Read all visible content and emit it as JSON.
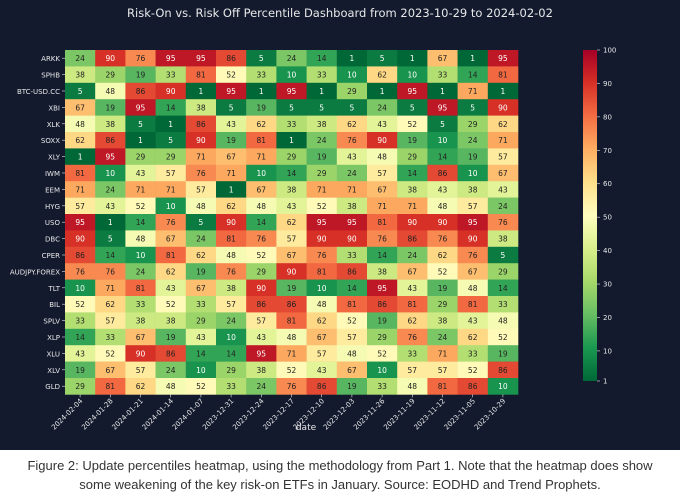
{
  "chart_data": {
    "type": "heatmap",
    "title": "Risk-On vs. Risk Off Percentile Dashboard from 2023-10-29 to 2024-02-02",
    "xlabel": "date",
    "ylabel": "",
    "x": [
      "2024-02-04",
      "2024-01-28",
      "2024-01-21",
      "2024-01-14",
      "2024-01-07",
      "2023-12-31",
      "2023-12-24",
      "2023-12-17",
      "2023-12-10",
      "2023-12-03",
      "2023-11-26",
      "2023-11-19",
      "2023-11-12",
      "2023-11-05",
      "2023-10-29"
    ],
    "y": [
      "ARKK",
      "SPHB",
      "BTC-USD.CC",
      "XBI",
      "XLK",
      "SOXX",
      "XLY",
      "IWM",
      "EEM",
      "HYG",
      "USO",
      "DBC",
      "CPER",
      "AUDJPY.FOREX",
      "TLT",
      "BIL",
      "SPLV",
      "XLP",
      "XLU",
      "XLV",
      "GLD"
    ],
    "values": [
      [
        24,
        90,
        76,
        95,
        95,
        86,
        5,
        24,
        14,
        1,
        5,
        1,
        67,
        1,
        95
      ],
      [
        38,
        29,
        19,
        33,
        81,
        52,
        33,
        10,
        33,
        10,
        62,
        10,
        33,
        14,
        81
      ],
      [
        5,
        48,
        86,
        90,
        1,
        95,
        1,
        95,
        1,
        29,
        1,
        95,
        1,
        71,
        1
      ],
      [
        67,
        19,
        95,
        14,
        38,
        5,
        19,
        5,
        5,
        5,
        24,
        5,
        95,
        5,
        90
      ],
      [
        48,
        38,
        5,
        1,
        86,
        43,
        62,
        33,
        38,
        62,
        43,
        52,
        5,
        29,
        62
      ],
      [
        62,
        86,
        1,
        5,
        90,
        19,
        81,
        1,
        24,
        76,
        90,
        19,
        10,
        24,
        71
      ],
      [
        1,
        95,
        29,
        29,
        71,
        67,
        71,
        29,
        19,
        43,
        48,
        29,
        14,
        19,
        57
      ],
      [
        81,
        10,
        43,
        57,
        76,
        71,
        10,
        14,
        29,
        24,
        57,
        14,
        86,
        10,
        67
      ],
      [
        71,
        24,
        71,
        71,
        57,
        1,
        67,
        38,
        71,
        71,
        67,
        38,
        43,
        38,
        43
      ],
      [
        57,
        43,
        52,
        10,
        48,
        62,
        48,
        43,
        52,
        38,
        71,
        71,
        48,
        57,
        24
      ],
      [
        95,
        1,
        14,
        76,
        5,
        90,
        14,
        62,
        95,
        95,
        81,
        90,
        90,
        95,
        76
      ],
      [
        90,
        5,
        48,
        67,
        24,
        81,
        76,
        57,
        90,
        90,
        76,
        86,
        76,
        90,
        38
      ],
      [
        86,
        14,
        10,
        81,
        62,
        48,
        52,
        67,
        76,
        33,
        14,
        24,
        62,
        76,
        5
      ],
      [
        76,
        76,
        24,
        62,
        19,
        76,
        29,
        90,
        81,
        86,
        38,
        67,
        52,
        67,
        29
      ],
      [
        10,
        71,
        81,
        43,
        67,
        38,
        90,
        19,
        10,
        14,
        95,
        43,
        19,
        48,
        14
      ],
      [
        52,
        62,
        33,
        52,
        33,
        57,
        86,
        86,
        48,
        81,
        86,
        81,
        29,
        81,
        33
      ],
      [
        33,
        57,
        38,
        38,
        29,
        24,
        57,
        81,
        62,
        52,
        19,
        62,
        38,
        43,
        48
      ],
      [
        14,
        33,
        67,
        19,
        43,
        10,
        43,
        48,
        67,
        57,
        29,
        76,
        24,
        62,
        52
      ],
      [
        43,
        52,
        90,
        86,
        14,
        14,
        95,
        71,
        57,
        48,
        52,
        33,
        71,
        33,
        19
      ],
      [
        19,
        67,
        57,
        24,
        10,
        29,
        38,
        52,
        43,
        67,
        10,
        57,
        57,
        52,
        86
      ],
      [
        29,
        81,
        62,
        48,
        52,
        33,
        24,
        76,
        86,
        19,
        33,
        48,
        81,
        86,
        10
      ]
    ],
    "colorbar": {
      "min": 1,
      "max": 100,
      "ticks": [
        1,
        10,
        20,
        30,
        40,
        50,
        60,
        70,
        80,
        90,
        100
      ],
      "colormap": "RdYlGn_r"
    },
    "grid": false,
    "annotations": "cell values shown"
  },
  "caption": {
    "line1": "Figure 2: Update percentiles heatmap, using the methodology from Part 1. Note that the heatmap does show",
    "line2": "some weakening of the key risk-on ETFs in January. Source: EODHD and Trend Prophets."
  },
  "colors": {
    "panel_background": "#131a2e",
    "text": "#e8e8e8",
    "caption_text": "#333333"
  }
}
